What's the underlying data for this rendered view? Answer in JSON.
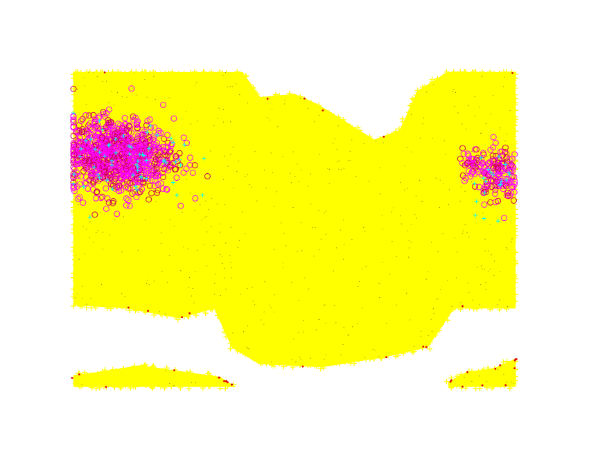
{
  "chart_data": {
    "type": "scatter",
    "title": "",
    "xlabel": "",
    "ylabel": "",
    "grid": false,
    "axes_visible": false,
    "legend": "none",
    "markers": {
      "yellow_plus": "#ffff00",
      "magenta_circle": "#ff00ff",
      "circle_edge": "#cc0055",
      "cyan_plus": "#00ffff",
      "red_dot": "#dd0000",
      "dark_dot": "#333300"
    },
    "x_range": [
      0,
      1
    ],
    "y_range": [
      0,
      1
    ],
    "series": [
      {
        "marker": "plus",
        "color": "#ffff00",
        "regions": [
          {
            "polygon": [
              [
                0,
                1
              ],
              [
                0.38,
                1
              ],
              [
                0.42,
                0.92
              ],
              [
                0.5,
                0.93
              ],
              [
                0.55,
                0.9
              ],
              [
                0.68,
                0.79
              ],
              [
                0.74,
                0.82
              ],
              [
                0.78,
                0.94
              ],
              [
                0.85,
                1
              ],
              [
                1,
                1
              ],
              [
                1,
                0.28
              ],
              [
                0.86,
                0.28
              ],
              [
                0.8,
                0.16
              ],
              [
                0.7,
                0.13
              ],
              [
                0.56,
                0.1
              ],
              [
                0.42,
                0.11
              ],
              [
                0.36,
                0.16
              ],
              [
                0.32,
                0.28
              ],
              [
                0.24,
                0.25
              ],
              [
                0.12,
                0.28
              ],
              [
                0,
                0.29
              ]
            ]
          },
          {
            "polygon": [
              [
                0,
                0.04
              ],
              [
                0.36,
                0.04
              ],
              [
                0.33,
                0.065
              ],
              [
                0.25,
                0.08
              ],
              [
                0.15,
                0.1
              ],
              [
                0.06,
                0.08
              ],
              [
                0,
                0.07
              ]
            ]
          },
          {
            "polygon": [
              [
                0.85,
                0.04
              ],
              [
                1,
                0.04
              ],
              [
                1,
                0.12
              ],
              [
                0.95,
                0.09
              ],
              [
                0.89,
                0.08
              ],
              [
                0.85,
                0.05
              ]
            ]
          }
        ]
      },
      {
        "marker": "circle",
        "color": "#ff00ff",
        "clusters": [
          {
            "center": [
              0.11,
              0.74
            ],
            "spread": [
              0.13,
              0.13
            ],
            "count": 800
          },
          {
            "center": [
              0.05,
              0.77
            ],
            "spread": [
              0.06,
              0.1
            ],
            "count": 180
          },
          {
            "center": [
              0.96,
              0.69
            ],
            "spread": [
              0.05,
              0.1
            ],
            "count": 160
          },
          {
            "center": [
              0.9,
              0.72
            ],
            "spread": [
              0.03,
              0.05
            ],
            "count": 40
          }
        ]
      },
      {
        "marker": "plus",
        "color": "#00ffff",
        "clusters": [
          {
            "center": [
              0.13,
              0.72
            ],
            "spread": [
              0.14,
              0.14
            ],
            "count": 60
          },
          {
            "center": [
              0.95,
              0.68
            ],
            "spread": [
              0.06,
              0.1
            ],
            "count": 20
          }
        ]
      },
      {
        "marker": "dot",
        "color": "#dd0000",
        "edges": true,
        "count": 40
      },
      {
        "marker": "dot",
        "color": "#333300",
        "count": 500
      }
    ]
  }
}
